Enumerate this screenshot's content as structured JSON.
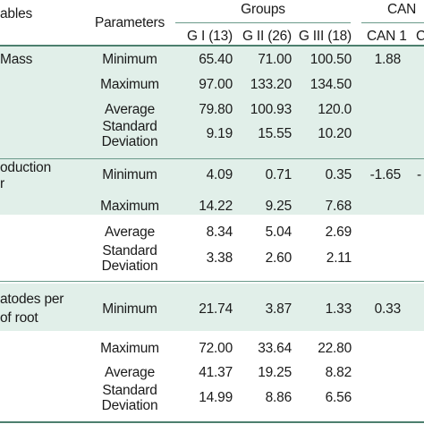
{
  "header": {
    "variables_fragment": "ables",
    "parameters": "Parameters",
    "groups": "Groups",
    "can_fragment": "CAN",
    "group_cols": [
      "G I (13)",
      "G II (26)",
      "G III (18)"
    ],
    "can_cols": [
      "CAN 1",
      "C"
    ]
  },
  "sections": [
    {
      "var_lines": [
        "Mass"
      ],
      "rows": [
        {
          "param": "Minimum",
          "g1": "65.40",
          "g2": "71.00",
          "g3": "100.50",
          "can1": "1.88"
        },
        {
          "param": "Maximum",
          "g1": "97.00",
          "g2": "133.20",
          "g3": "134.50"
        },
        {
          "param": "Average",
          "g1": "79.80",
          "g2": "100.93",
          "g3": "120.0"
        },
        {
          "param_lines": [
            "Standard",
            "Deviation"
          ],
          "g1": "9.19",
          "g2": "15.55",
          "g3": "10.20"
        }
      ]
    },
    {
      "var_lines": [
        "oduction",
        "r"
      ],
      "rows": [
        {
          "param": "Minimum",
          "g1": "4.09",
          "g2": "0.71",
          "g3": "0.35",
          "can1": "-1.65",
          "can2": "-"
        },
        {
          "param": "Maximum",
          "g1": "14.22",
          "g2": "9.25",
          "g3": "7.68"
        },
        {
          "param": "Average",
          "g1": "8.34",
          "g2": "5.04",
          "g3": "2.69"
        },
        {
          "param_lines": [
            "Standard",
            "Deviation"
          ],
          "g1": "3.38",
          "g2": "2.60",
          "g3": "2.11"
        }
      ]
    },
    {
      "var_lines": [
        "atodes per",
        "of root"
      ],
      "rows": [
        {
          "param": "Minimum",
          "g1": "21.74",
          "g2": "3.87",
          "g3": "1.33",
          "can1": "0.33"
        },
        {
          "param": "Maximum",
          "g1": "72.00",
          "g2": "33.64",
          "g3": "22.80"
        },
        {
          "param": "Average",
          "g1": "41.37",
          "g2": "19.25",
          "g3": "8.82"
        },
        {
          "param_lines": [
            "Standard",
            "Deviation"
          ],
          "g1": "14.99",
          "g2": "8.86",
          "g3": "6.56"
        }
      ]
    }
  ]
}
